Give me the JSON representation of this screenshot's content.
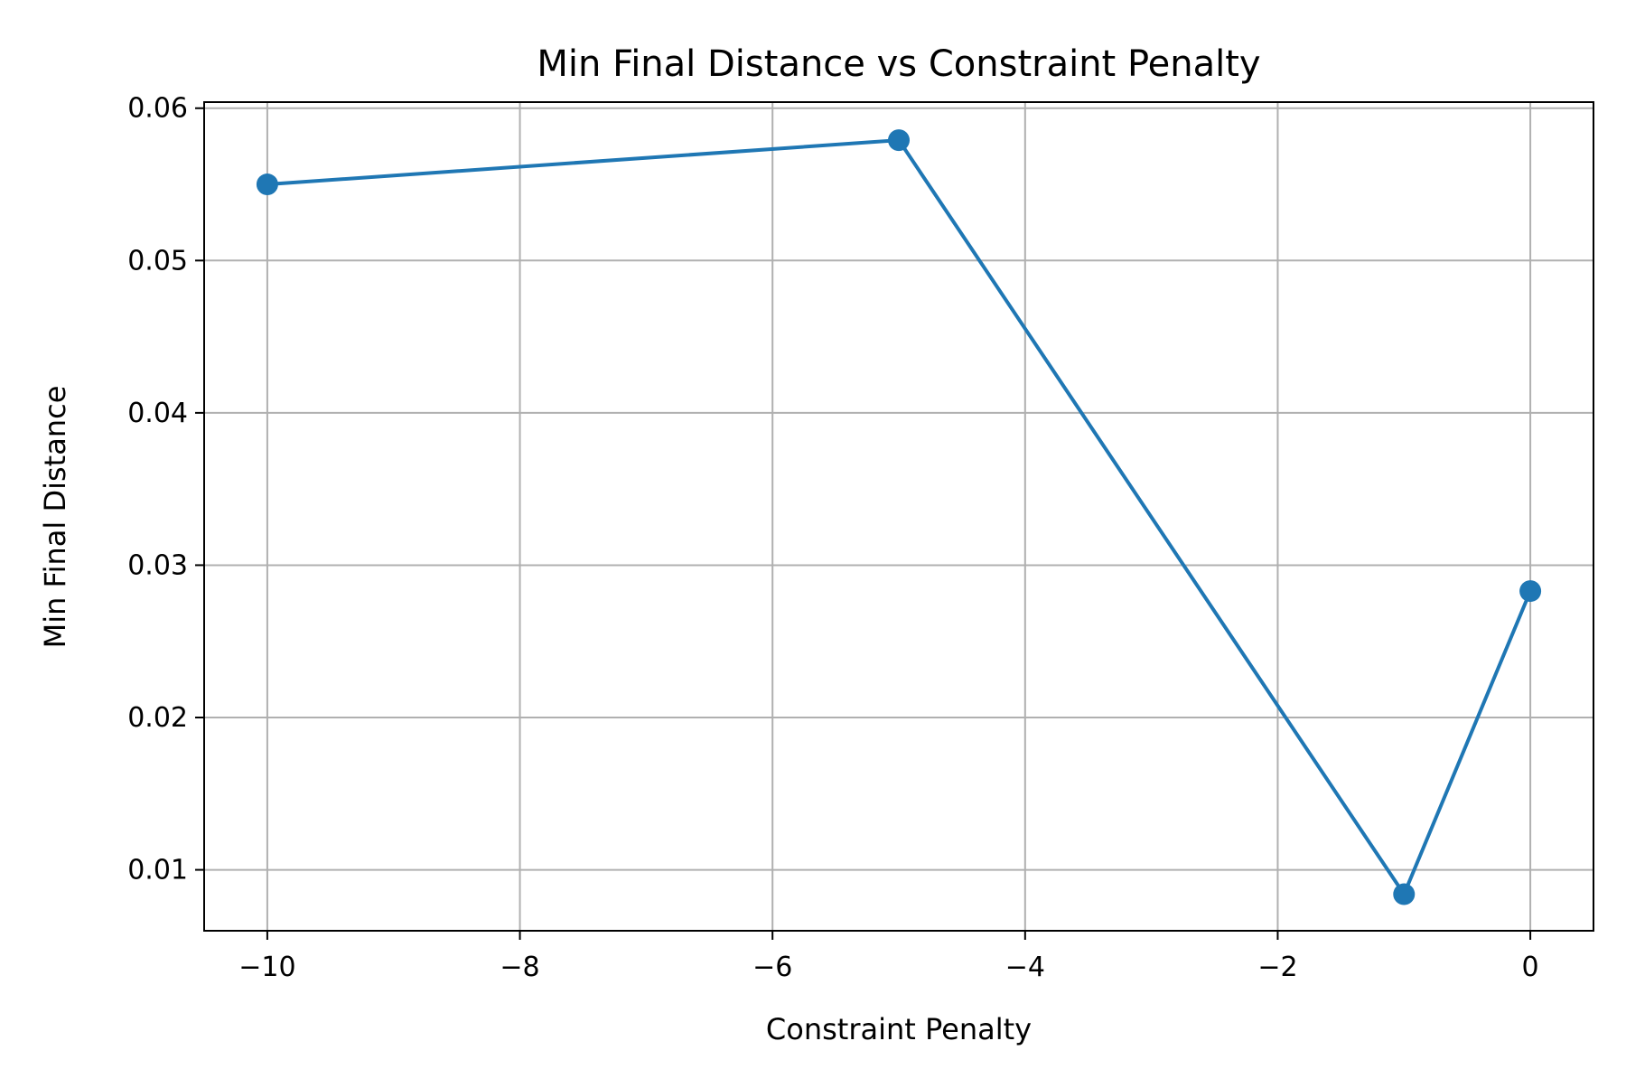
{
  "chart_data": {
    "type": "line",
    "title": "Min Final Distance vs Constraint Penalty",
    "xlabel": "Constraint Penalty",
    "ylabel": "Min Final Distance",
    "xlim": [
      -10.5,
      0.5
    ],
    "ylim": [
      0.006,
      0.0604
    ],
    "x_ticks": [
      -10,
      -8,
      -6,
      -4,
      -2,
      0
    ],
    "x_tick_labels": [
      "−10",
      "−8",
      "−6",
      "−4",
      "−2",
      "0"
    ],
    "y_ticks": [
      0.01,
      0.02,
      0.03,
      0.04,
      0.05,
      0.06
    ],
    "y_tick_labels": [
      "0.01",
      "0.02",
      "0.03",
      "0.04",
      "0.05",
      "0.06"
    ],
    "grid": true,
    "legend": false,
    "series": [
      {
        "x": [
          -10,
          -5,
          -1,
          0
        ],
        "y": [
          0.055,
          0.0579,
          0.0084,
          0.0283
        ],
        "color": "#1f77b4",
        "marker": "circle"
      }
    ]
  }
}
